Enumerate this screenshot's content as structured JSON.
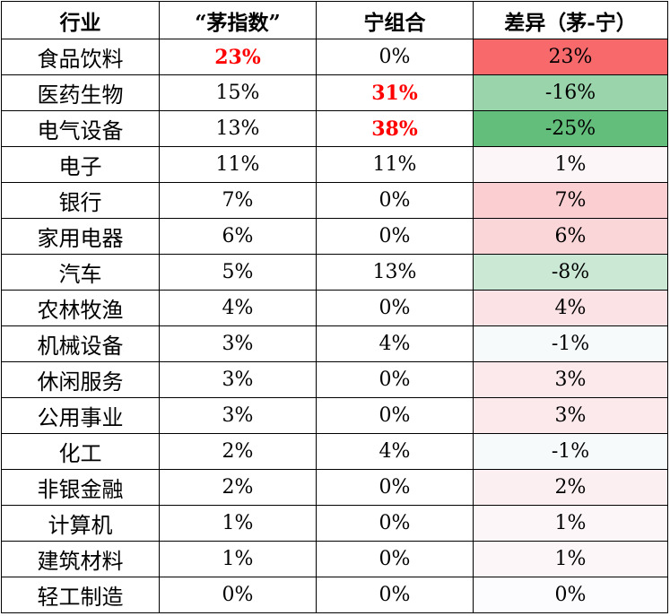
{
  "chart_data": {
    "type": "table",
    "columns": [
      "行业",
      "“茅指数”",
      "宁组合",
      "差异（茅-宁）"
    ],
    "rows": [
      {
        "industry": "食品饮料",
        "mao": "23%",
        "ning": "0%",
        "diff": "23%",
        "diff_value": 23
      },
      {
        "industry": "医药生物",
        "mao": "15%",
        "ning": "31%",
        "diff": "-16%",
        "diff_value": -16
      },
      {
        "industry": "电气设备",
        "mao": "13%",
        "ning": "38%",
        "diff": "-25%",
        "diff_value": -25
      },
      {
        "industry": "电子",
        "mao": "11%",
        "ning": "11%",
        "diff": "1%",
        "diff_value": 1
      },
      {
        "industry": "银行",
        "mao": "7%",
        "ning": "0%",
        "diff": "7%",
        "diff_value": 7
      },
      {
        "industry": "家用电器",
        "mao": "6%",
        "ning": "0%",
        "diff": "6%",
        "diff_value": 6
      },
      {
        "industry": "汽车",
        "mao": "5%",
        "ning": "13%",
        "diff": "-8%",
        "diff_value": -8
      },
      {
        "industry": "农林牧渔",
        "mao": "4%",
        "ning": "0%",
        "diff": "4%",
        "diff_value": 4
      },
      {
        "industry": "机械设备",
        "mao": "3%",
        "ning": "4%",
        "diff": "-1%",
        "diff_value": -1
      },
      {
        "industry": "休闲服务",
        "mao": "3%",
        "ning": "0%",
        "diff": "3%",
        "diff_value": 3
      },
      {
        "industry": "公用事业",
        "mao": "3%",
        "ning": "0%",
        "diff": "3%",
        "diff_value": 3
      },
      {
        "industry": "化工",
        "mao": "2%",
        "ning": "4%",
        "diff": "-1%",
        "diff_value": -1
      },
      {
        "industry": "非银金融",
        "mao": "2%",
        "ning": "0%",
        "diff": "2%",
        "diff_value": 2
      },
      {
        "industry": "计算机",
        "mao": "1%",
        "ning": "0%",
        "diff": "1%",
        "diff_value": 1
      },
      {
        "industry": "建筑材料",
        "mao": "1%",
        "ning": "0%",
        "diff": "1%",
        "diff_value": 1
      },
      {
        "industry": "轻工制造",
        "mao": "0%",
        "ning": "0%",
        "diff": "0%",
        "diff_value": 0
      }
    ],
    "highlighted_cells": [
      {
        "row": 0,
        "column": "mao"
      },
      {
        "row": 1,
        "column": "ning"
      },
      {
        "row": 2,
        "column": "ning"
      }
    ],
    "colors": {
      "highlight_text": "#ff0000",
      "positive_max": "#f8696b",
      "negative_max": "#63be7b",
      "neutral": "#fcfcff"
    }
  }
}
